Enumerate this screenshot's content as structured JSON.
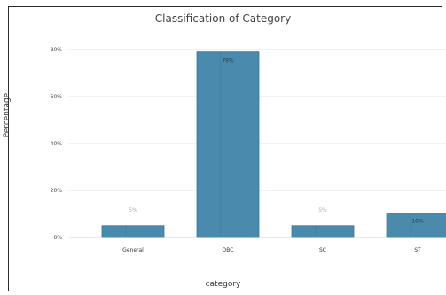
{
  "chart_data": {
    "type": "bar",
    "title": "Classification of Category",
    "xlabel": "category",
    "ylabel": "Percentage",
    "categories": [
      "General",
      "OBC",
      "SC",
      "ST"
    ],
    "values": [
      5,
      79,
      5,
      10
    ],
    "data_labels": [
      "5%",
      "79%",
      "5%",
      "10%"
    ],
    "y_ticks": [
      0,
      20,
      40,
      60,
      80
    ],
    "y_tick_labels": [
      "0%",
      "20%",
      "40%",
      "60%",
      "80%"
    ],
    "ylim": [
      0,
      80
    ],
    "grid": true,
    "colors": {
      "bar": "#4a8aad",
      "grid": "#e6e6e6"
    }
  }
}
